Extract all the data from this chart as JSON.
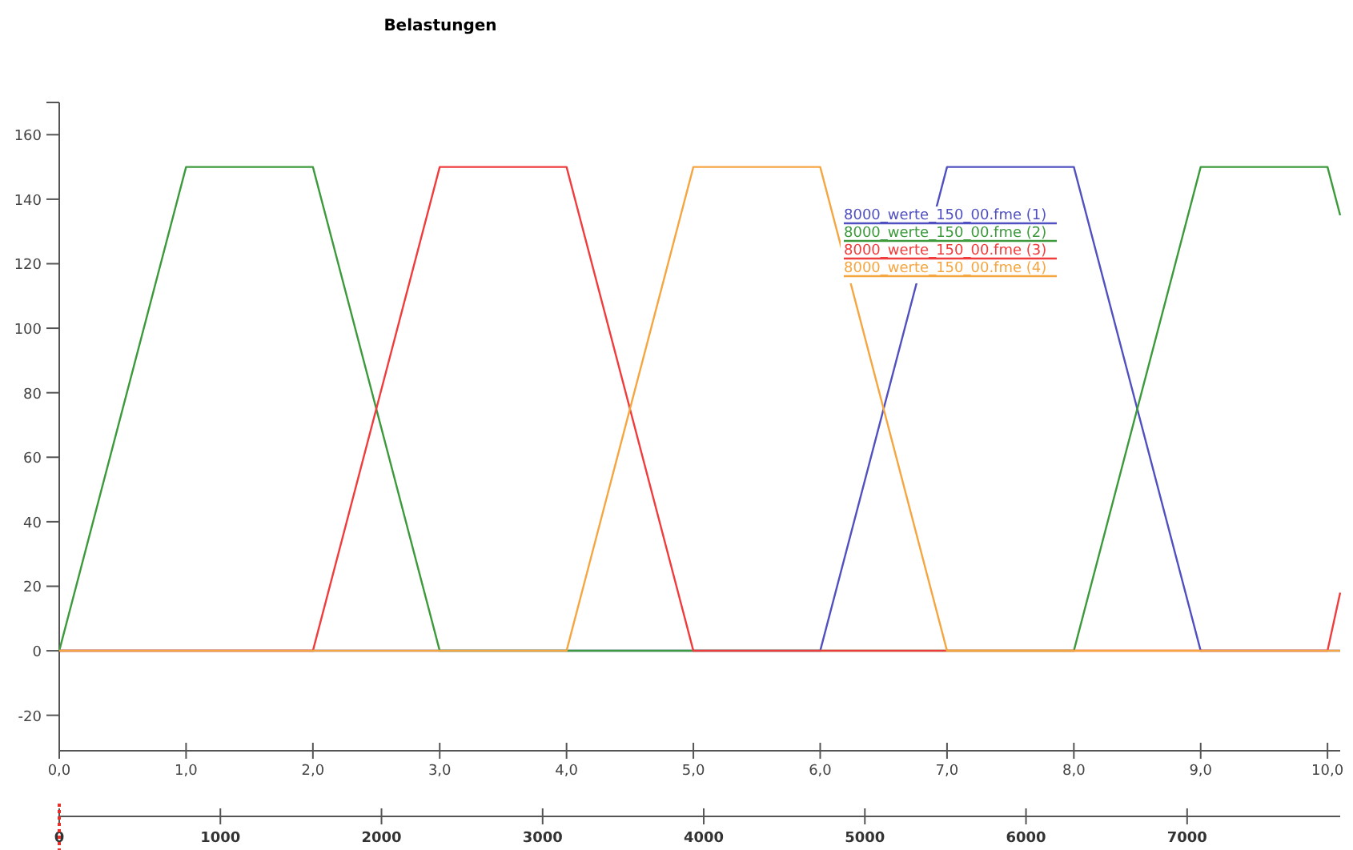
{
  "chart_data": {
    "type": "line",
    "title": "Belastungen",
    "xlim": [
      0,
      10.1
    ],
    "ylim": [
      -31,
      170
    ],
    "xticks": [
      {
        "value": 0,
        "label": "0,0"
      },
      {
        "value": 1,
        "label": "1,0"
      },
      {
        "value": 2,
        "label": "2,0"
      },
      {
        "value": 3,
        "label": "3,0"
      },
      {
        "value": 4,
        "label": "4,0"
      },
      {
        "value": 5,
        "label": "5,0"
      },
      {
        "value": 6,
        "label": "6,0"
      },
      {
        "value": 7,
        "label": "7,0"
      },
      {
        "value": 8,
        "label": "8,0"
      },
      {
        "value": 9,
        "label": "9,0"
      },
      {
        "value": 10,
        "label": "10,0"
      }
    ],
    "yticks": [
      -20,
      0,
      20,
      40,
      60,
      80,
      100,
      120,
      140,
      160
    ],
    "x2lim": [
      0,
      7950
    ],
    "x2ticks": [
      0,
      1000,
      2000,
      3000,
      4000,
      5000,
      6000,
      7000
    ],
    "grid": false,
    "legend": "top right",
    "marker": "none",
    "line_style": "solid",
    "series": [
      {
        "name": "8000_werte_150_00.fme (1)",
        "color": "#5050c0",
        "x": [
          0,
          6,
          7,
          8,
          9,
          10.1
        ],
        "values": [
          0,
          0,
          150,
          150,
          0,
          0
        ]
      },
      {
        "name": "8000_werte_150_00.fme (2)",
        "color": "#3c9a3c",
        "x": [
          0,
          1,
          2,
          3,
          8,
          9,
          10,
          10.1
        ],
        "values": [
          0,
          150,
          150,
          0,
          0,
          150,
          150,
          135
        ]
      },
      {
        "name": "8000_werte_150_00.fme (3)",
        "color": "#f03c3c",
        "x": [
          0,
          2,
          3,
          4,
          5,
          10,
          10.1
        ],
        "values": [
          0,
          0,
          150,
          150,
          0,
          0,
          18
        ]
      },
      {
        "name": "8000_werte_150_00.fme (4)",
        "color": "#f5a640",
        "x": [
          0,
          4,
          5,
          6,
          7,
          10.1
        ],
        "values": [
          0,
          0,
          150,
          150,
          0,
          0
        ]
      }
    ]
  }
}
